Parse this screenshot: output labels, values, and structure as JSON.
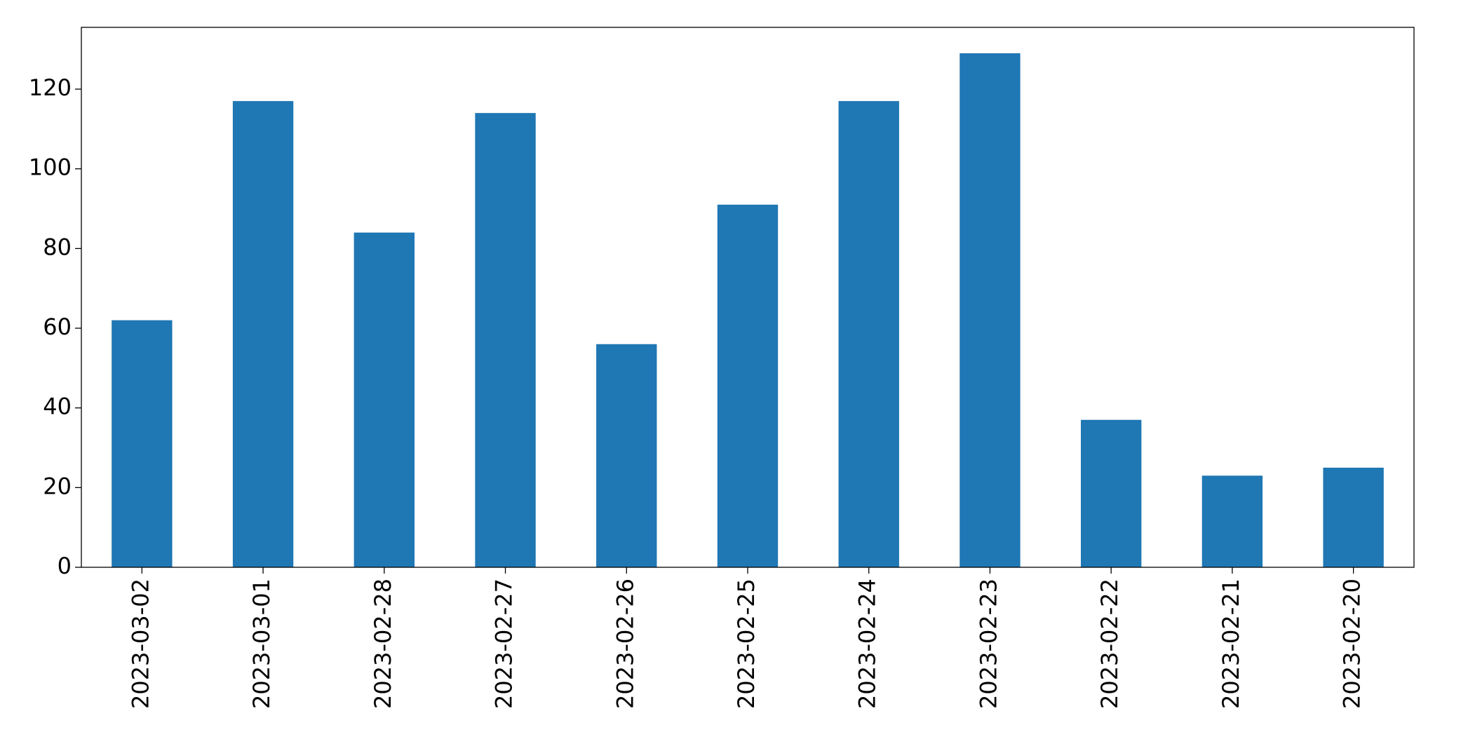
{
  "chart_data": {
    "type": "bar",
    "categories": [
      "2023-03-02",
      "2023-03-01",
      "2023-02-28",
      "2023-02-27",
      "2023-02-26",
      "2023-02-25",
      "2023-02-24",
      "2023-02-23",
      "2023-02-22",
      "2023-02-21",
      "2023-02-20"
    ],
    "values": [
      62,
      117,
      84,
      114,
      56,
      91,
      117,
      129,
      37,
      23,
      25
    ],
    "color": "#1f77b4",
    "ylim": [
      0,
      135.5
    ],
    "yticks": [
      0,
      20,
      40,
      60,
      80,
      100,
      120
    ],
    "grid": false
  }
}
